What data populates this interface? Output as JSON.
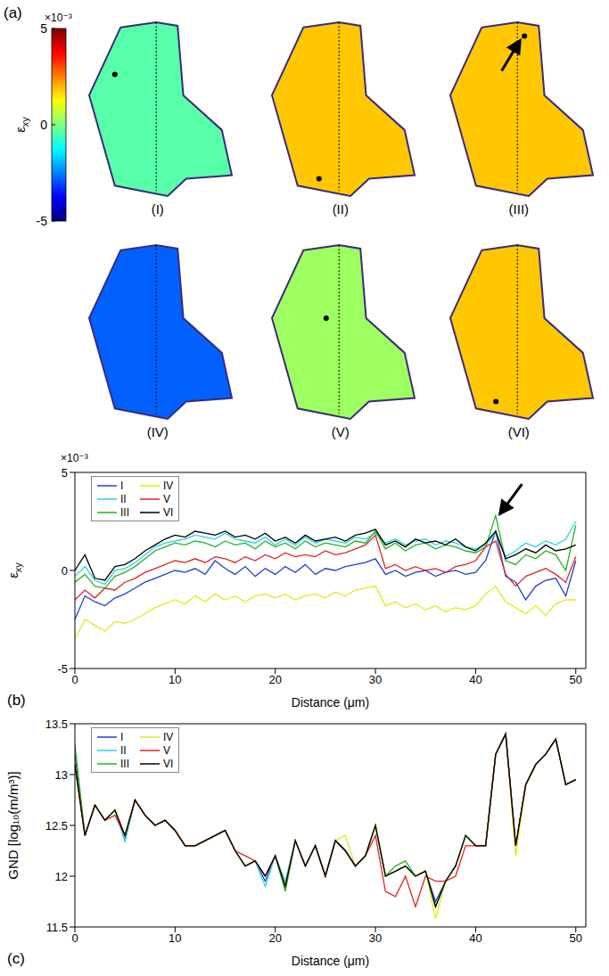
{
  "chart_data": [
    {
      "type": "heatmap",
      "title": "(a)",
      "colorbar": {
        "label": "εxy",
        "multiplier": "×10⁻³",
        "range": [
          -5,
          5
        ],
        "ticks": [
          -5,
          0,
          5
        ]
      },
      "maps": [
        {
          "label": "(I)",
          "value": -0.4
        },
        {
          "label": "(II)",
          "value": 1.8
        },
        {
          "label": "(III)",
          "value": 1.8
        },
        {
          "label": "(IV)",
          "value": -2.8
        },
        {
          "label": "(V)",
          "value": 0.3
        },
        {
          "label": "(VI)",
          "value": 1.8
        }
      ]
    },
    {
      "type": "line",
      "title": "(b)",
      "x_label": "Distance (μm)",
      "y_label": "εxy",
      "y_multiplier": "×10⁻³",
      "xlim": [
        0,
        51
      ],
      "xticks": [
        0,
        10,
        20,
        30,
        40,
        50
      ],
      "ylim": [
        -5,
        5
      ],
      "yticks": [
        -5,
        0,
        5
      ],
      "legend": "upper left",
      "x": [
        0,
        1,
        2,
        3,
        4,
        5,
        6,
        7,
        8,
        9,
        10,
        11,
        12,
        13,
        14,
        15,
        16,
        17,
        18,
        19,
        20,
        21,
        22,
        23,
        24,
        25,
        26,
        27,
        28,
        29,
        30,
        31,
        32,
        33,
        34,
        35,
        36,
        37,
        38,
        39,
        40,
        41,
        42,
        43,
        44,
        45,
        46,
        47,
        48,
        49,
        50
      ],
      "series": [
        {
          "name": "I",
          "color": "#1f3fd6",
          "values": [
            -2.5,
            -1.3,
            -1.6,
            -1.8,
            -1.4,
            -1.2,
            -0.9,
            -0.6,
            -0.4,
            -0.2,
            0.0,
            -0.1,
            0.1,
            -0.2,
            0.5,
            0.1,
            -0.2,
            0.2,
            -0.3,
            0.1,
            -0.2,
            0.2,
            -0.1,
            0.3,
            -0.2,
            0.1,
            0.0,
            0.2,
            0.3,
            0.4,
            0.6,
            -0.2,
            0.0,
            -0.3,
            -0.1,
            0.0,
            -0.3,
            -0.1,
            0.0,
            -0.2,
            -0.1,
            0.5,
            2.0,
            -0.3,
            -0.6,
            -1.5,
            -0.8,
            -0.5,
            -0.4,
            -1.3,
            0.5
          ]
        },
        {
          "name": "II",
          "color": "#29d3ea",
          "values": [
            -0.3,
            0.2,
            -0.5,
            -0.7,
            0.0,
            0.1,
            0.4,
            0.8,
            1.2,
            1.4,
            1.5,
            1.6,
            1.8,
            1.7,
            1.6,
            1.9,
            1.6,
            1.5,
            1.4,
            1.7,
            1.3,
            1.6,
            1.3,
            1.7,
            1.4,
            1.6,
            1.5,
            1.4,
            1.7,
            1.6,
            1.9,
            1.4,
            1.6,
            1.3,
            1.5,
            1.6,
            1.3,
            1.5,
            1.4,
            1.2,
            1.1,
            1.3,
            1.9,
            0.7,
            1.0,
            1.4,
            1.2,
            1.5,
            1.3,
            1.6,
            2.5
          ]
        },
        {
          "name": "III",
          "color": "#22b422",
          "values": [
            -0.6,
            -0.2,
            -0.8,
            -0.9,
            -0.3,
            -0.1,
            0.2,
            0.6,
            1.0,
            1.2,
            1.4,
            1.3,
            1.5,
            1.4,
            1.2,
            1.5,
            1.3,
            1.4,
            1.1,
            1.5,
            1.2,
            1.4,
            1.1,
            1.5,
            1.2,
            1.4,
            1.3,
            1.2,
            1.5,
            1.4,
            2.0,
            1.1,
            1.4,
            1.0,
            1.3,
            1.4,
            1.1,
            1.3,
            1.2,
            1.0,
            0.9,
            1.2,
            2.8,
            0.5,
            0.3,
            0.8,
            0.6,
            1.0,
            0.8,
            0.0,
            2.3
          ]
        },
        {
          "name": "IV",
          "color": "#e6e61a",
          "values": [
            -3.5,
            -2.5,
            -2.8,
            -3.1,
            -2.6,
            -2.7,
            -2.5,
            -2.2,
            -1.9,
            -1.7,
            -1.5,
            -1.7,
            -1.3,
            -1.6,
            -1.2,
            -1.5,
            -1.3,
            -1.6,
            -1.3,
            -1.2,
            -1.4,
            -1.2,
            -1.5,
            -1.3,
            -1.2,
            -1.4,
            -1.1,
            -1.3,
            -1.0,
            -0.9,
            -0.8,
            -1.8,
            -1.6,
            -1.9,
            -1.7,
            -2.0,
            -1.8,
            -2.1,
            -1.9,
            -2.0,
            -1.8,
            -1.2,
            -0.8,
            -1.6,
            -1.9,
            -2.2,
            -1.8,
            -2.3,
            -1.7,
            -1.5,
            -1.5
          ]
        },
        {
          "name": "V",
          "color": "#e62222",
          "values": [
            -1.5,
            -1.0,
            -1.4,
            -0.9,
            -1.0,
            -0.6,
            -0.4,
            -0.1,
            0.1,
            0.3,
            0.5,
            0.4,
            0.6,
            0.4,
            0.7,
            0.6,
            0.4,
            0.7,
            0.5,
            0.8,
            0.6,
            0.9,
            0.7,
            0.8,
            0.7,
            1.0,
            0.8,
            0.9,
            1.1,
            1.3,
            1.8,
            0.1,
            0.3,
            0.0,
            0.2,
            0.0,
            0.1,
            -0.1,
            0.2,
            0.3,
            0.5,
            1.2,
            1.5,
            -0.2,
            -0.8,
            -0.3,
            -0.1,
            0.1,
            -0.2,
            -0.6,
            0.7
          ]
        },
        {
          "name": "VI",
          "color": "#000000",
          "values": [
            0.0,
            0.8,
            -0.4,
            -0.5,
            0.2,
            0.3,
            0.6,
            1.0,
            1.3,
            1.6,
            1.8,
            1.7,
            2.0,
            1.9,
            1.8,
            2.0,
            1.7,
            1.8,
            1.6,
            1.9,
            1.5,
            1.7,
            1.4,
            1.8,
            1.5,
            1.6,
            1.7,
            1.5,
            1.8,
            1.9,
            2.1,
            1.3,
            1.5,
            1.2,
            1.6,
            1.4,
            1.5,
            1.3,
            1.6,
            1.2,
            1.0,
            1.4,
            2.0,
            0.6,
            0.8,
            1.1,
            0.9,
            1.3,
            1.0,
            1.1,
            1.3
          ]
        }
      ]
    },
    {
      "type": "line",
      "title": "(c)",
      "x_label": "Distance (μm)",
      "y_label": "GND [log₁₀(m/m³)]",
      "xlim": [
        0,
        51
      ],
      "xticks": [
        0,
        10,
        20,
        30,
        40,
        50
      ],
      "ylim": [
        11.5,
        13.5
      ],
      "yticks": [
        11.5,
        12,
        12.5,
        13,
        13.5
      ],
      "legend": "upper left",
      "x": [
        0,
        1,
        2,
        3,
        4,
        5,
        6,
        7,
        8,
        9,
        10,
        11,
        12,
        13,
        14,
        15,
        16,
        17,
        18,
        19,
        20,
        21,
        22,
        23,
        24,
        25,
        26,
        27,
        28,
        29,
        30,
        31,
        32,
        33,
        34,
        35,
        36,
        37,
        38,
        39,
        40,
        41,
        42,
        43,
        44,
        45,
        46,
        47,
        48,
        49,
        50
      ],
      "series": [
        {
          "name": "I",
          "color": "#1f3fd6",
          "values": [
            13.2,
            12.4,
            12.7,
            12.55,
            12.65,
            12.35,
            12.75,
            12.6,
            12.5,
            12.55,
            12.45,
            12.3,
            12.3,
            12.35,
            12.4,
            12.45,
            12.25,
            12.1,
            12.15,
            11.95,
            12.2,
            11.9,
            12.35,
            12.1,
            12.3,
            12.0,
            12.35,
            12.25,
            12.1,
            12.2,
            12.5,
            12.0,
            12.05,
            12.1,
            12.0,
            12.05,
            11.75,
            11.95,
            12.1,
            12.4,
            12.3,
            12.3,
            13.2,
            13.4,
            12.3,
            12.9,
            13.1,
            13.2,
            13.35,
            12.9,
            12.95
          ]
        },
        {
          "name": "II",
          "color": "#29d3ea",
          "values": [
            13.1,
            12.4,
            12.7,
            12.55,
            12.65,
            12.35,
            12.75,
            12.6,
            12.5,
            12.55,
            12.45,
            12.3,
            12.3,
            12.35,
            12.4,
            12.45,
            12.25,
            12.1,
            12.15,
            11.9,
            12.2,
            11.95,
            12.35,
            12.1,
            12.3,
            12.0,
            12.35,
            12.25,
            12.1,
            12.2,
            12.5,
            12.0,
            12.05,
            12.1,
            12.0,
            12.05,
            11.7,
            11.95,
            12.1,
            12.4,
            12.3,
            12.3,
            13.2,
            13.4,
            12.3,
            12.9,
            13.1,
            13.2,
            13.35,
            12.9,
            12.95
          ]
        },
        {
          "name": "III",
          "color": "#22b422",
          "values": [
            13.3,
            12.4,
            12.7,
            12.55,
            12.65,
            12.4,
            12.75,
            12.6,
            12.5,
            12.55,
            12.45,
            12.3,
            12.3,
            12.35,
            12.4,
            12.45,
            12.25,
            12.1,
            12.15,
            12.0,
            12.2,
            11.85,
            12.35,
            12.1,
            12.3,
            12.0,
            12.35,
            12.25,
            12.1,
            12.2,
            12.5,
            12.0,
            12.1,
            12.15,
            12.0,
            12.05,
            11.7,
            11.95,
            12.1,
            12.4,
            12.3,
            12.3,
            13.2,
            13.4,
            12.3,
            12.9,
            13.1,
            13.2,
            13.35,
            12.9,
            12.95
          ]
        },
        {
          "name": "IV",
          "color": "#e6e61a",
          "values": [
            13.1,
            12.4,
            12.7,
            12.55,
            12.65,
            12.4,
            12.75,
            12.6,
            12.5,
            12.55,
            12.45,
            12.3,
            12.3,
            12.35,
            12.4,
            12.45,
            12.25,
            12.1,
            12.15,
            12.0,
            12.2,
            11.9,
            12.35,
            12.1,
            12.3,
            12.0,
            12.35,
            12.4,
            12.1,
            12.2,
            12.5,
            12.0,
            12.05,
            12.1,
            12.0,
            12.05,
            11.58,
            11.95,
            12.1,
            12.4,
            12.3,
            12.3,
            13.2,
            13.4,
            12.2,
            12.9,
            13.1,
            13.2,
            13.35,
            12.9,
            12.95
          ]
        },
        {
          "name": "V",
          "color": "#e62222",
          "values": [
            13.1,
            12.4,
            12.7,
            12.55,
            12.6,
            12.4,
            12.75,
            12.6,
            12.5,
            12.55,
            12.45,
            12.3,
            12.3,
            12.35,
            12.4,
            12.45,
            12.25,
            12.2,
            12.15,
            12.0,
            12.2,
            11.9,
            12.35,
            12.1,
            12.3,
            12.0,
            12.35,
            12.25,
            12.1,
            12.2,
            12.4,
            11.85,
            11.8,
            12.0,
            11.7,
            12.0,
            11.95,
            11.95,
            12.0,
            12.3,
            12.3,
            12.3,
            13.2,
            13.4,
            12.3,
            12.9,
            13.1,
            13.2,
            13.35,
            12.9,
            12.95
          ]
        },
        {
          "name": "VI",
          "color": "#000000",
          "values": [
            13.1,
            12.4,
            12.7,
            12.55,
            12.65,
            12.4,
            12.75,
            12.6,
            12.5,
            12.55,
            12.45,
            12.3,
            12.3,
            12.35,
            12.4,
            12.45,
            12.25,
            12.1,
            12.15,
            12.0,
            12.2,
            11.9,
            12.35,
            12.1,
            12.3,
            12.0,
            12.35,
            12.25,
            12.1,
            12.2,
            12.5,
            12.0,
            12.05,
            12.1,
            12.0,
            12.05,
            11.7,
            11.95,
            12.1,
            12.4,
            12.3,
            12.3,
            13.2,
            13.4,
            12.3,
            12.9,
            13.1,
            13.2,
            13.35,
            12.9,
            12.95
          ]
        }
      ]
    }
  ]
}
